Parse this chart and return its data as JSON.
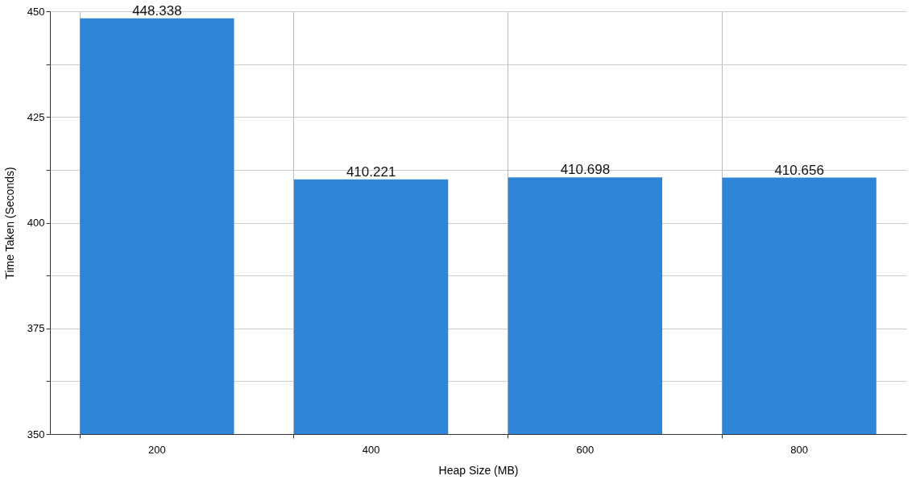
{
  "chart_data": {
    "type": "bar",
    "xlabel": "Heap Size (MB)",
    "ylabel": "Time Taken (Seconds)",
    "categories": [
      "200",
      "400",
      "600",
      "800"
    ],
    "values": [
      448.338,
      410.221,
      410.698,
      410.656
    ],
    "color": "#2f86d8",
    "ylim": [
      350,
      450
    ],
    "yticks": [
      350,
      {
        "value": 362.5,
        "label": null
      },
      375,
      {
        "value": 387.5,
        "label": null
      },
      400,
      {
        "value": 412.5,
        "label": null
      },
      425,
      {
        "value": 437.5,
        "label": null
      },
      450
    ],
    "grid": true,
    "data_labels": true
  }
}
